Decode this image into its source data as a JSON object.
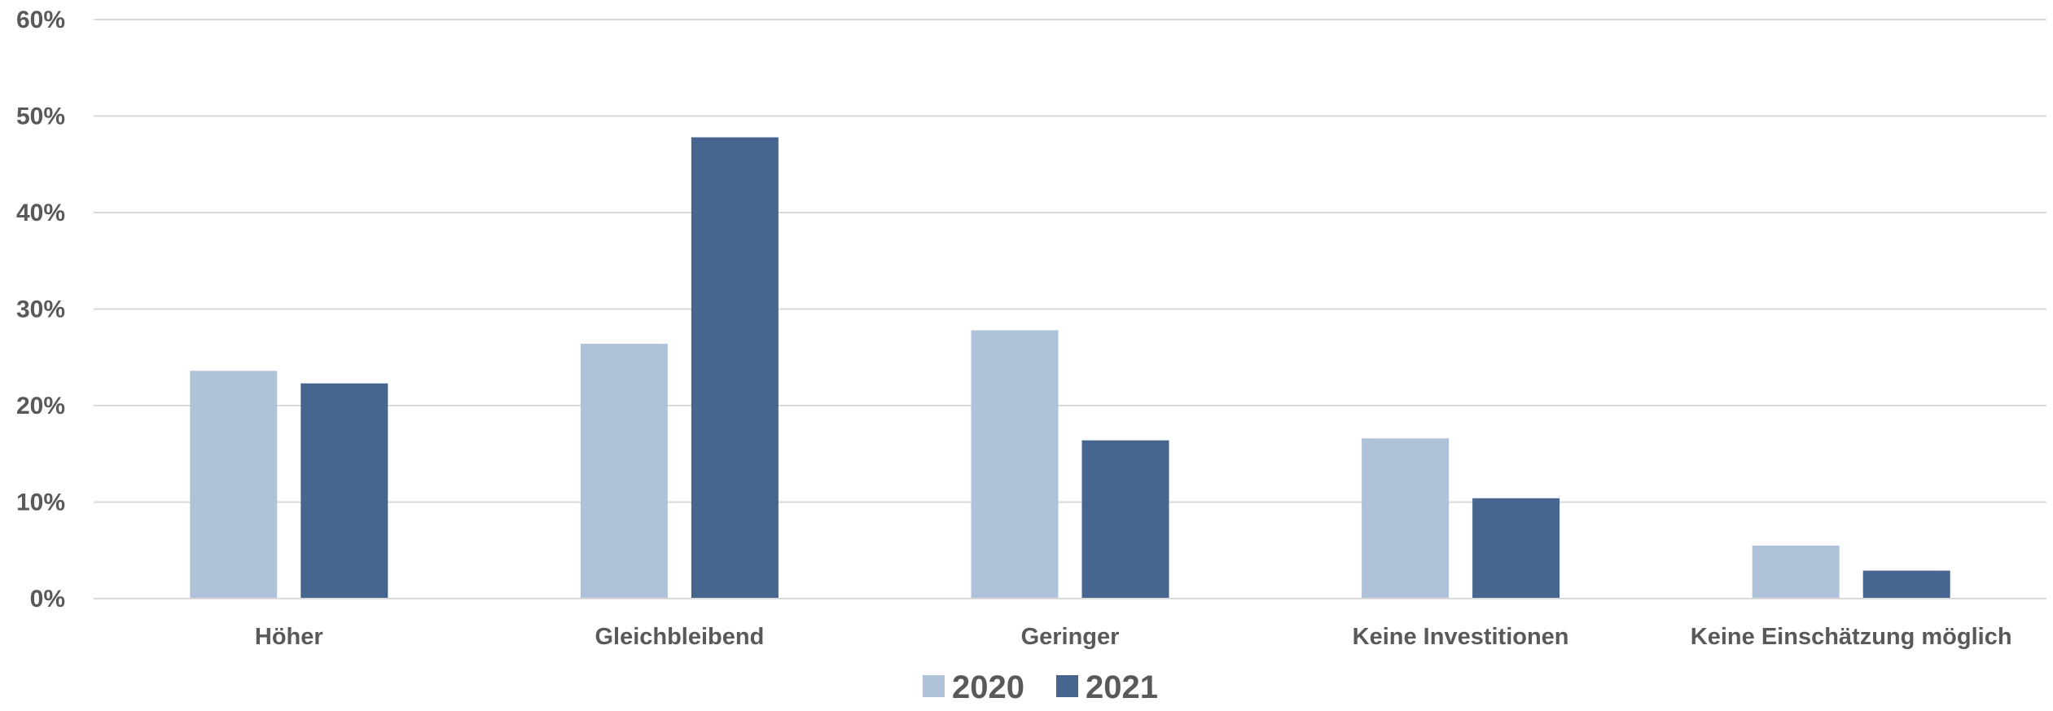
{
  "chart_data": {
    "type": "bar",
    "categories": [
      "Höher",
      "Gleichbleibend",
      "Geringer",
      "Keine Investitionen",
      "Keine Einschätzung möglich"
    ],
    "series": [
      {
        "name": "2020",
        "values": [
          23.6,
          26.4,
          27.8,
          16.6,
          5.5
        ],
        "color": "#b0c1da"
      },
      {
        "name": "2021",
        "values": [
          22.3,
          47.8,
          16.4,
          10.4,
          2.9
        ],
        "color": "#47668f"
      }
    ],
    "ylim": [
      0,
      60
    ],
    "yticks": [
      0,
      10,
      20,
      30,
      40,
      50,
      60
    ],
    "ytick_labels": [
      "0%",
      "10%",
      "20%",
      "30%",
      "40%",
      "50%",
      "60%"
    ],
    "grid": true,
    "legend_position": "bottom"
  }
}
